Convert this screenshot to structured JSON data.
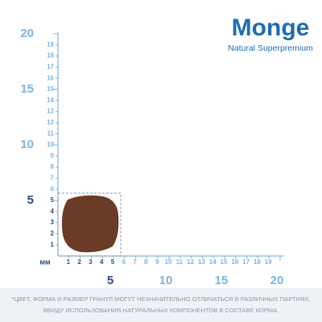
{
  "logo": {
    "brand": "Monge",
    "tagline": "Natural Superpremium"
  },
  "ruler": {
    "unit": "мм",
    "y_small": [
      1,
      2,
      3,
      4,
      5,
      6,
      7,
      8,
      9,
      10,
      11,
      12,
      13,
      14,
      15,
      16,
      17,
      18,
      19
    ],
    "y_big": [
      5,
      10,
      15,
      20
    ],
    "x_small": [
      1,
      2,
      3,
      4,
      5,
      6,
      7,
      8,
      9,
      10,
      11,
      12,
      13,
      14,
      15,
      16,
      17,
      18,
      19
    ],
    "x_big": [
      5,
      10,
      15,
      20
    ]
  },
  "disclaimer": [
    "*ЦВЕТ, ФОРМА И РАЗМЕР ГРАНУЛ МОГУТ НЕЗНАЧИТЕЛЬНО ОТЛИЧАТЬСЯ В РАЗЛИЧНЫХ ПАРТИЯХ,",
    "ВВИДУ ИСПОЛЬЗОВАНИЯ НАТУРАЛЬНЫХ КОМПОНЕНТОВ В СОСТАВЕ КОРМА."
  ]
}
